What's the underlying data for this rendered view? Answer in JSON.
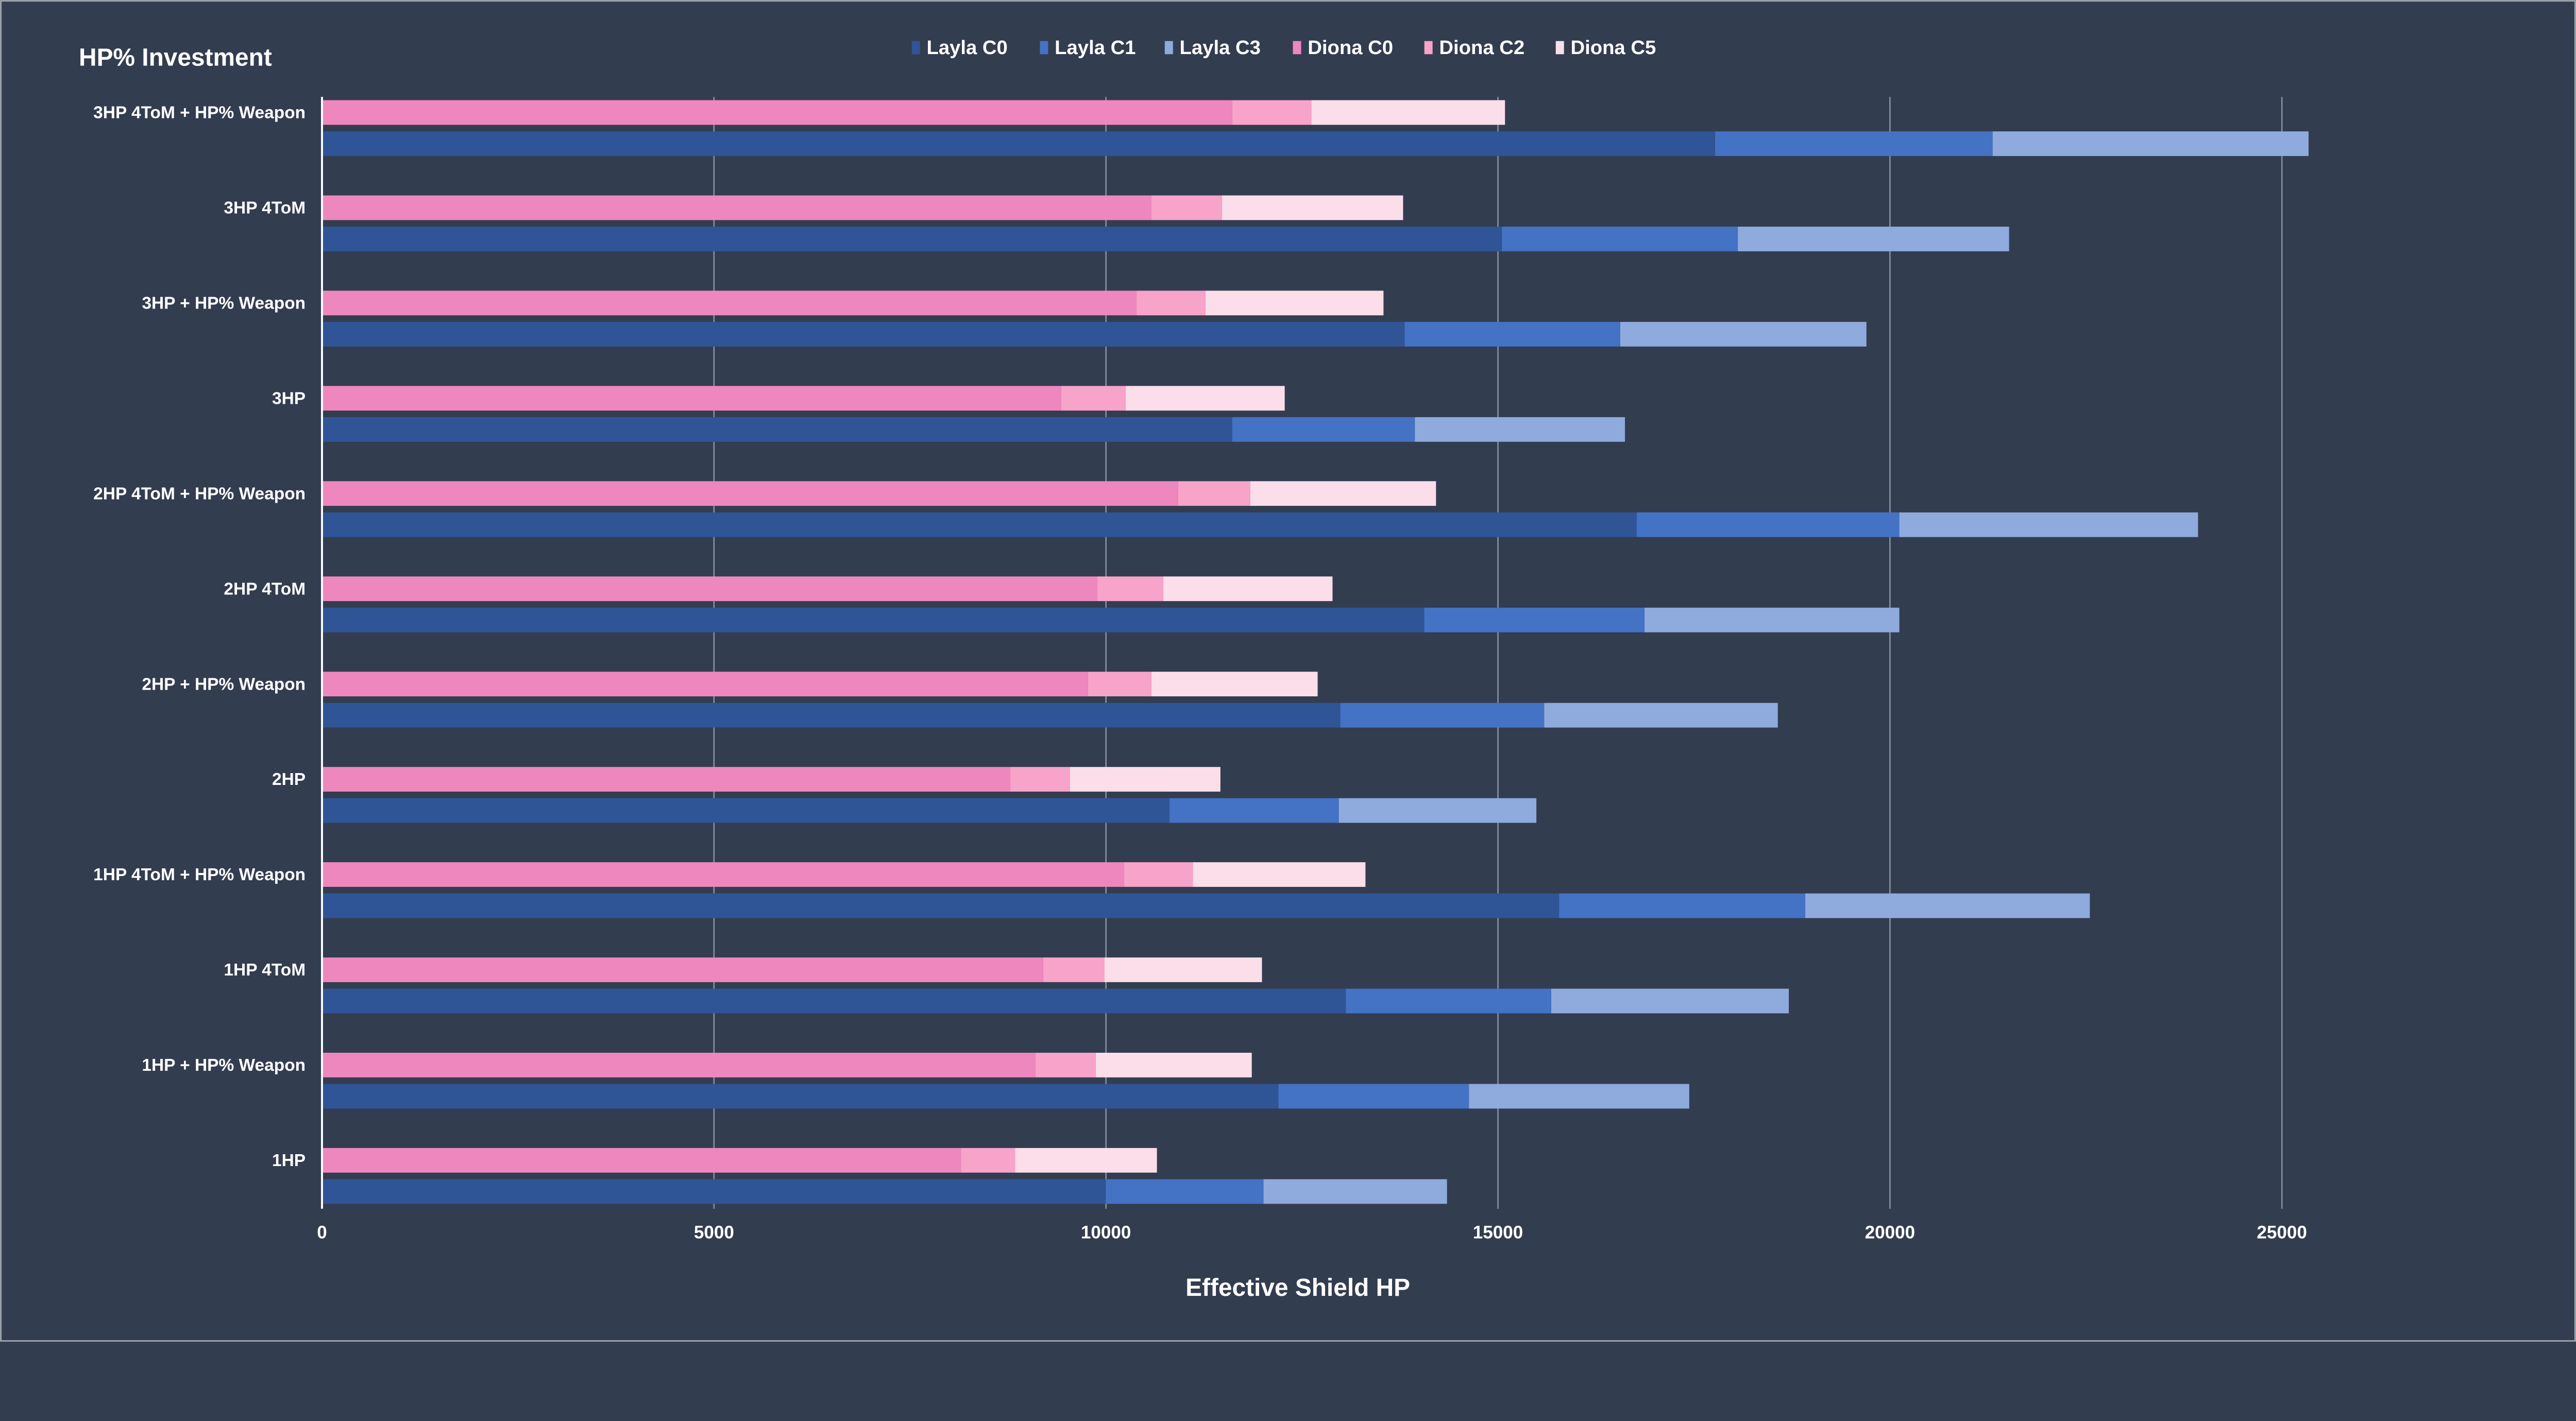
{
  "chart_data": {
    "type": "bar",
    "orientation": "horizontal",
    "stacked": true,
    "title": "HP% Investment",
    "xlabel": "Effective Shield HP",
    "ylabel": "",
    "xlim": [
      0,
      27500
    ],
    "xticks": [
      0,
      5000,
      10000,
      15000,
      20000,
      25000
    ],
    "grid": true,
    "legend_position": "top",
    "categories": [
      "3HP 4ToM + HP% Weapon",
      "3HP 4ToM",
      "3HP + HP% Weapon",
      "3HP",
      "2HP 4ToM + HP% Weapon",
      "2HP 4ToM",
      "2HP + HP% Weapon",
      "2HP",
      "1HP 4ToM + HP% Weapon",
      "1HP 4ToM",
      "1HP + HP% Weapon",
      "1HP"
    ],
    "series": [
      {
        "name": "Layla C0",
        "group": "Layla",
        "color": "#2f5597",
        "values": [
          17770,
          15050,
          13810,
          11610,
          16770,
          14060,
          12990,
          10810,
          15780,
          13060,
          12200,
          10000
        ]
      },
      {
        "name": "Layla C1",
        "group": "Layla",
        "color": "#4472c4",
        "values": [
          21310,
          18060,
          16560,
          13940,
          20120,
          16870,
          15590,
          12970,
          18920,
          15680,
          14630,
          12010
        ]
      },
      {
        "name": "Layla C3",
        "group": "Layla",
        "color": "#8faadc",
        "values": [
          25340,
          21520,
          19700,
          16620,
          23930,
          20120,
          18570,
          15490,
          22550,
          18710,
          17440,
          14350
        ]
      },
      {
        "name": "Diona C0",
        "group": "Diona",
        "color": "#ee87bd",
        "values": [
          11610,
          10580,
          10390,
          9430,
          10920,
          9890,
          9770,
          8780,
          10230,
          9200,
          9100,
          8150
        ]
      },
      {
        "name": "Diona C2",
        "group": "Diona",
        "color": "#f8a3c9",
        "values": [
          12620,
          11480,
          11270,
          10250,
          11840,
          10730,
          10580,
          9540,
          11110,
          9980,
          9870,
          8840
        ]
      },
      {
        "name": "Diona C5",
        "group": "Diona",
        "color": "#fcdeea",
        "values": [
          15090,
          13790,
          13540,
          12280,
          14210,
          12890,
          12700,
          11460,
          13310,
          11990,
          11860,
          10650
        ]
      }
    ],
    "value_note_series_are_cumulative": true
  }
}
